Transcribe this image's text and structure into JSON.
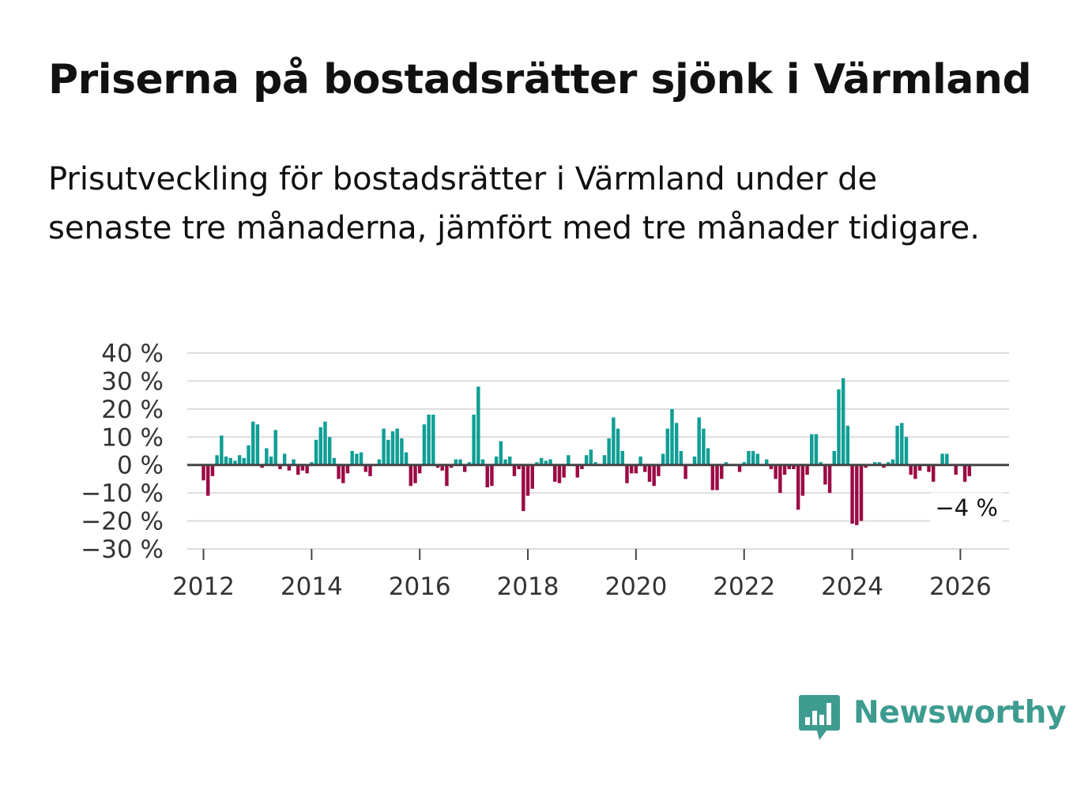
{
  "title": "Priserna på bostadsrätter sjönk i Värmland",
  "subtitle": "Prisutveckling för bostadsrätter i Värmland under de senaste tre månaderna, jämfört med tre månader tidigare.",
  "brand": {
    "name": "Newsworthy",
    "icon": "bar-chart-speech-bubble-icon"
  },
  "colors": {
    "positive": "#0f9e95",
    "negative": "#9b0a45",
    "grid": "#dddddd",
    "zero": "#444444",
    "text": "#333333"
  },
  "chart_data": {
    "type": "bar",
    "title": "Priserna på bostadsrätter sjönk i Värmland",
    "xlabel": "",
    "ylabel": "",
    "ylim": [
      -30,
      40
    ],
    "yticks": [
      40,
      30,
      20,
      10,
      0,
      -10,
      -20,
      -30
    ],
    "ytick_labels": [
      "40 %",
      "30 %",
      "20 %",
      "10 %",
      "0 %",
      "−10 %",
      "−20 %",
      "−30 %"
    ],
    "xlim": [
      2011.7,
      2026.9
    ],
    "xticks": [
      2012,
      2014,
      2016,
      2018,
      2020,
      2022,
      2024,
      2026
    ],
    "xtick_labels": [
      "2012",
      "2014",
      "2016",
      "2018",
      "2020",
      "2022",
      "2024",
      "2026"
    ],
    "start_year": 2012,
    "start_month": 1,
    "values": [
      -5.5,
      -11,
      -4,
      3.5,
      10.5,
      3,
      2.5,
      1.5,
      3.5,
      2.5,
      7,
      15.5,
      14.5,
      -1,
      6,
      3,
      12.5,
      -1.5,
      4,
      -2,
      2,
      -3.5,
      -2,
      -3,
      1,
      9,
      13.5,
      15.5,
      10,
      2.5,
      -5,
      -6.5,
      -3,
      5,
      4,
      4.5,
      -2.5,
      -4,
      0,
      2,
      13,
      9,
      12,
      13,
      9.5,
      4.5,
      -7.5,
      -6.5,
      -3,
      14.5,
      18,
      18,
      -1,
      -2,
      -7.5,
      -1,
      2,
      2,
      -2.5,
      1,
      18,
      28,
      2,
      -8,
      -7.5,
      3,
      8.5,
      2,
      3,
      -4,
      -1.5,
      -16.5,
      -11,
      -8.5,
      1,
      2.5,
      1.5,
      2,
      -6,
      -6.5,
      -4.5,
      3.5,
      0,
      -4.5,
      -1.5,
      3.5,
      5.5,
      1,
      0,
      3.5,
      9.5,
      17,
      13,
      5,
      -6.5,
      -3,
      -3,
      3,
      -2.5,
      -6,
      -7.5,
      -4,
      4,
      13,
      20,
      15,
      5,
      -5,
      0,
      3,
      17,
      13,
      6,
      -9,
      -9,
      -5,
      1,
      0,
      0,
      -2.5,
      1,
      5,
      5,
      4,
      0,
      2,
      -1.5,
      -5,
      -10,
      -3.5,
      -1.5,
      -1.5,
      -16,
      -11,
      -3.5,
      11,
      11,
      1,
      -7,
      -10,
      5,
      27,
      31,
      14,
      -21,
      -21.5,
      -20,
      -1,
      0,
      1,
      1,
      -1,
      1,
      2,
      14,
      15,
      10,
      -3.5,
      -5,
      -2,
      0,
      -2.5,
      -6,
      0,
      4,
      4,
      0,
      -3.5,
      0,
      -6,
      -4
    ],
    "annotation": {
      "label": "−4 %",
      "value": -4
    }
  }
}
